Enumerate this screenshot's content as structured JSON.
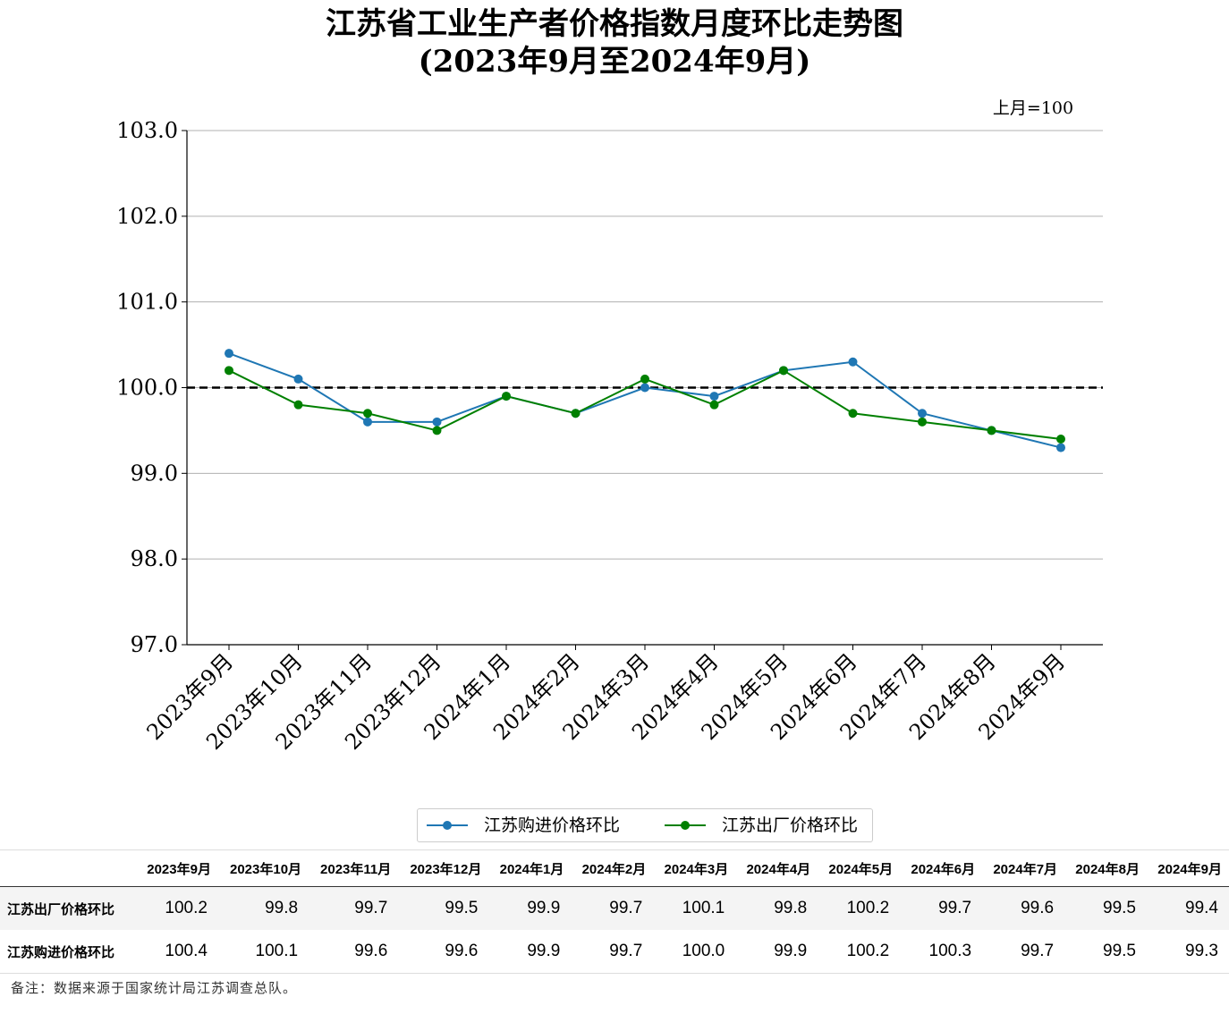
{
  "title_line1": "江苏省工业生产者价格指数月度环比走势图",
  "title_line2": "(2023年9月至2024年9月)",
  "unit_label": "上月=100",
  "chart_data": {
    "type": "line",
    "categories": [
      "2023年9月",
      "2023年10月",
      "2023年11月",
      "2023年12月",
      "2024年1月",
      "2024年2月",
      "2024年3月",
      "2024年4月",
      "2024年5月",
      "2024年6月",
      "2024年7月",
      "2024年8月",
      "2024年9月"
    ],
    "series": [
      {
        "name": "江苏购进价格环比",
        "color": "#1f77b4",
        "values": [
          100.4,
          100.1,
          99.6,
          99.6,
          99.9,
          99.7,
          100.0,
          99.9,
          100.2,
          100.3,
          99.7,
          99.5,
          99.3
        ]
      },
      {
        "name": "江苏出厂价格环比",
        "color": "#008000",
        "values": [
          100.2,
          99.8,
          99.7,
          99.5,
          99.9,
          99.7,
          100.1,
          99.8,
          100.2,
          99.7,
          99.6,
          99.5,
          99.4
        ]
      }
    ],
    "ylim": [
      97.0,
      103.0
    ],
    "yticks": [
      "97.0",
      "98.0",
      "99.0",
      "100.0",
      "101.0",
      "102.0",
      "103.0"
    ],
    "reference_line": 100.0,
    "grid": "horizontal",
    "legend_position": "bottom-center"
  },
  "table": {
    "headers": [
      "2023年9月",
      "2023年10月",
      "2023年11月",
      "2023年12月",
      "2024年1月",
      "2024年2月",
      "2024年3月",
      "2024年4月",
      "2024年5月",
      "2024年6月",
      "2024年7月",
      "2024年8月",
      "2024年9月"
    ],
    "rows": [
      {
        "label": "江苏出厂价格环比",
        "values": [
          "100.2",
          "99.8",
          "99.7",
          "99.5",
          "99.9",
          "99.7",
          "100.1",
          "99.8",
          "100.2",
          "99.7",
          "99.6",
          "99.5",
          "99.4"
        ]
      },
      {
        "label": "江苏购进价格环比",
        "values": [
          "100.4",
          "100.1",
          "99.6",
          "99.6",
          "99.9",
          "99.7",
          "100.0",
          "99.9",
          "100.2",
          "100.3",
          "99.7",
          "99.5",
          "99.3"
        ]
      }
    ]
  },
  "note": "备注：数据来源于国家统计局江苏调查总队。"
}
